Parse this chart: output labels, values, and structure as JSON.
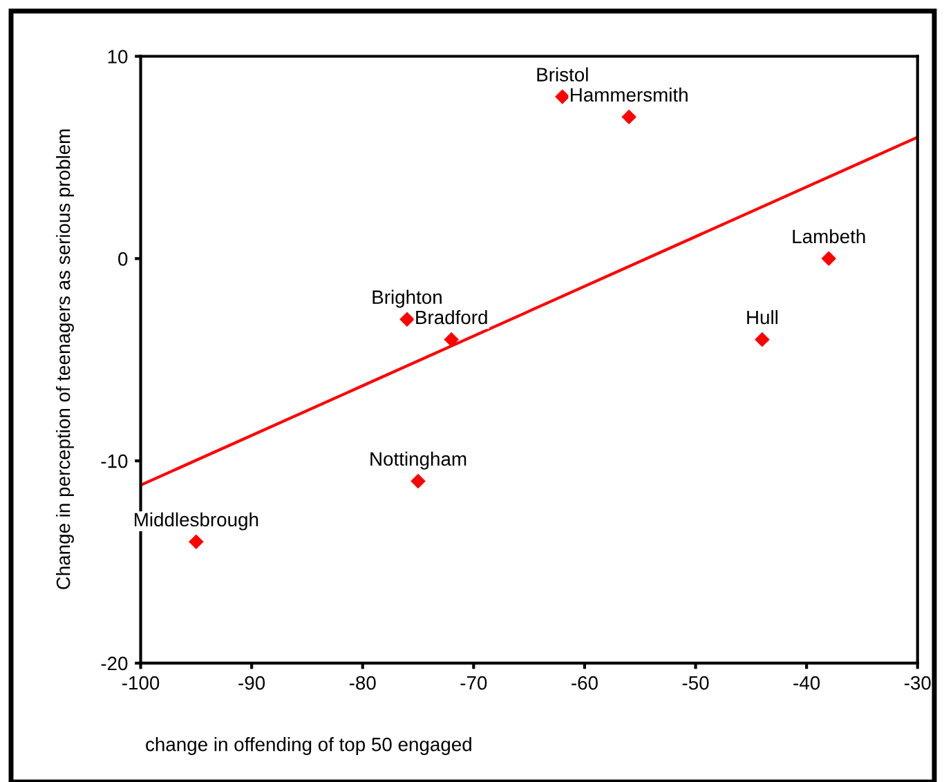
{
  "chart_data": {
    "type": "scatter",
    "xlabel": "change in offending of top 50 engaged",
    "ylabel": "Change in perception of teenagers as serious problem",
    "series": [
      {
        "color": "#ff0000",
        "marker": "diamond",
        "x": [
          -62,
          -56,
          -38,
          -44,
          -76,
          -72,
          -75,
          -95
        ],
        "values": [
          8,
          7,
          0,
          -4,
          -3,
          -4,
          -11,
          -14
        ]
      },
      {
        "type": "line",
        "color": "#ff0000",
        "x": [
          -100,
          -30
        ],
        "values": [
          -11.2,
          6
        ]
      }
    ],
    "annotations": [
      {
        "text": "Bristol",
        "x": -62,
        "y": 8
      },
      {
        "text": "Hammersmith",
        "x": -56,
        "y": 7
      },
      {
        "text": "Lambeth",
        "x": -38,
        "y": 0
      },
      {
        "text": "Hull",
        "x": -44,
        "y": -4
      },
      {
        "text": "Brighton",
        "x": -76,
        "y": -3
      },
      {
        "text": "Bradford",
        "x": -72,
        "y": -4
      },
      {
        "text": "Nottingham",
        "x": -75,
        "y": -11
      },
      {
        "text": "Middlesbrough",
        "x": -95,
        "y": -14
      }
    ],
    "xlim": [
      -100,
      -30
    ],
    "xticks": [
      -100,
      -90,
      -80,
      -70,
      -60,
      -50,
      -40,
      -30
    ],
    "ylim": [
      -20,
      10
    ],
    "yticks": [
      -20,
      -10,
      0,
      10
    ],
    "grid": false,
    "legend": false
  }
}
